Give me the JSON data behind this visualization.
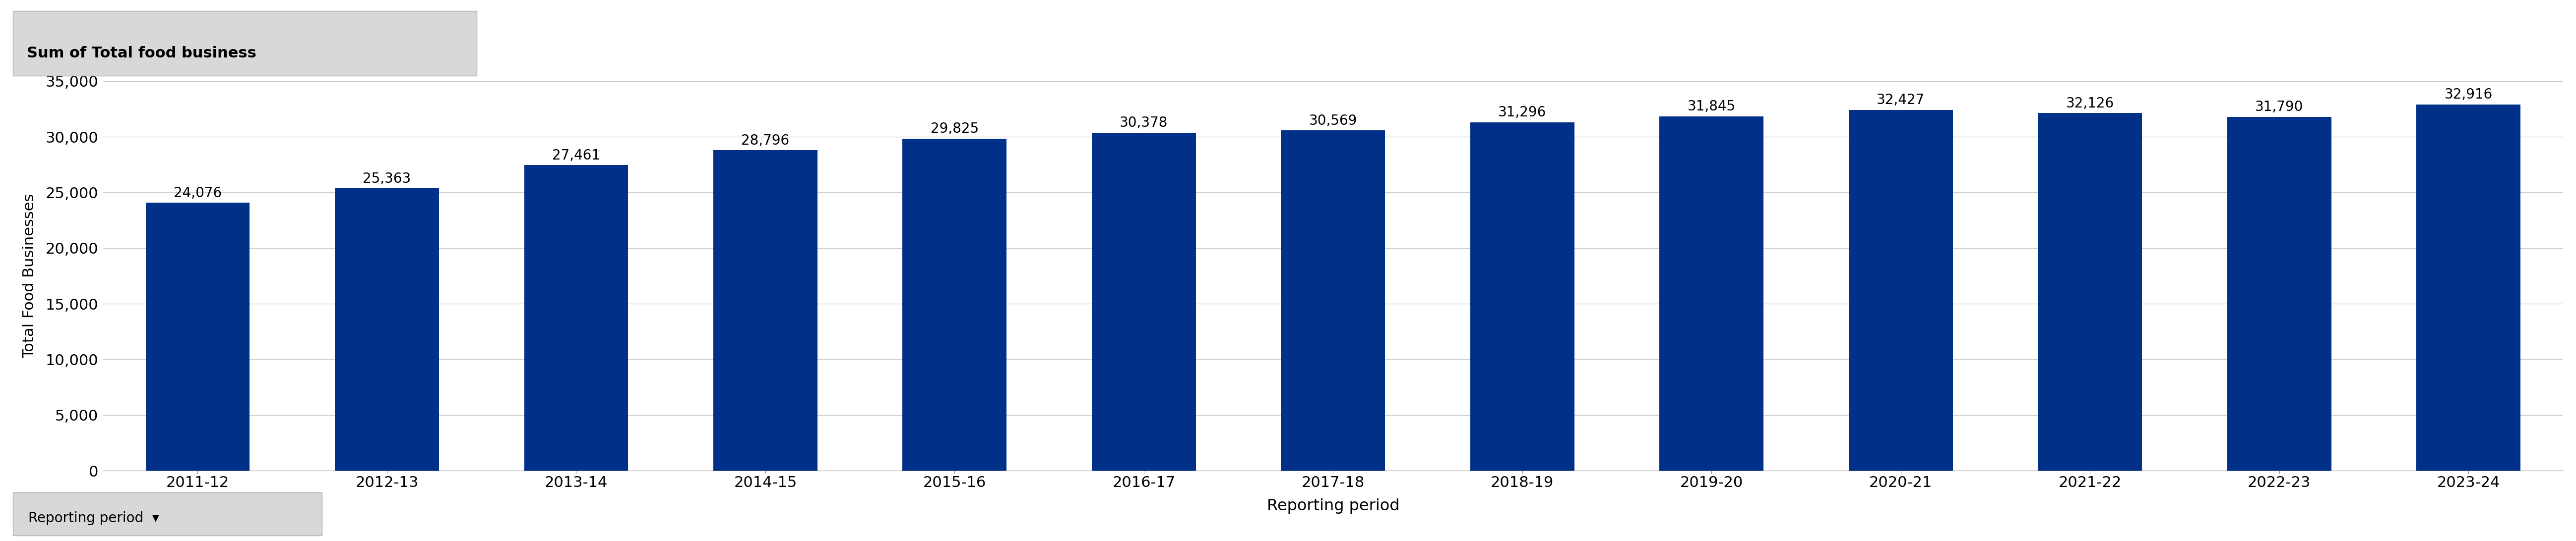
{
  "categories": [
    "2011-12",
    "2012-13",
    "2013-14",
    "2014-15",
    "2015-16",
    "2016-17",
    "2017-18",
    "2018-19",
    "2019-20",
    "2020-21",
    "2021-22",
    "2022-23",
    "2023-24"
  ],
  "values": [
    24076,
    25363,
    27461,
    28796,
    29825,
    30378,
    30569,
    31296,
    31845,
    32427,
    32126,
    31790,
    32916
  ],
  "bar_color": "#003087",
  "title": "Sum of Total food business",
  "xlabel": "Reporting period",
  "ylabel": "Total Food Businesses",
  "ylim": [
    0,
    35000
  ],
  "yticks": [
    0,
    5000,
    10000,
    15000,
    20000,
    25000,
    30000,
    35000
  ],
  "footer_label": "Reporting period",
  "title_box_color": "#d8d8d8",
  "footer_box_color": "#d8d8d8",
  "background_color": "#ffffff",
  "grid_color": "#cccccc",
  "tick_fontsize": 22,
  "value_fontsize": 20,
  "title_fontsize": 22,
  "xlabel_fontsize": 23,
  "ylabel_fontsize": 22,
  "footer_fontsize": 20
}
